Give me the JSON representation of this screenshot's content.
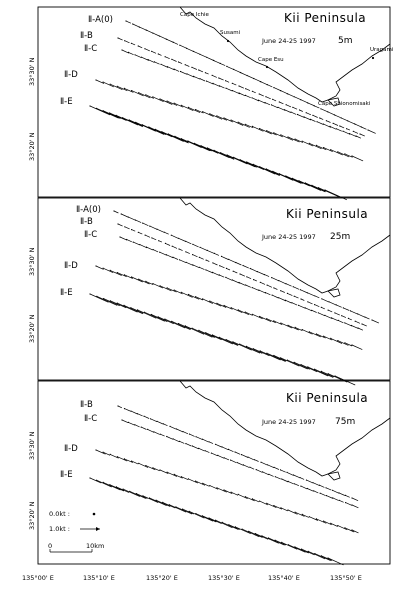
{
  "panels": [
    {
      "title": "Kii Peninsula",
      "date": "June 24-25 1997",
      "depth": "5m",
      "lat_labels": [
        "33°30' N",
        "33°20' N"
      ],
      "places": [
        "Cape Ichie",
        "Susami",
        "Uragami",
        "Cape Esu",
        "Cape Shionomisaki"
      ],
      "lines": [
        {
          "label": "Ⅱ-A(0)",
          "mag": 0.5
        },
        {
          "label": "Ⅱ-B",
          "mag": 0.3
        },
        {
          "label": "Ⅱ-C",
          "mag": 0.45
        },
        {
          "label": "Ⅱ-D",
          "mag": 0.75
        },
        {
          "label": "Ⅱ-E",
          "mag": 1.35
        }
      ]
    },
    {
      "title": "Kii Peninsula",
      "date": "June 24-25 1997",
      "depth": "25m",
      "lat_labels": [
        "33°30' N",
        "33°20' N"
      ],
      "lines": [
        {
          "label": "Ⅱ-A(0)",
          "mag": 0.45
        },
        {
          "label": "Ⅱ-B",
          "mag": 0.3
        },
        {
          "label": "Ⅱ-C",
          "mag": 0.45
        },
        {
          "label": "Ⅱ-D",
          "mag": 0.7
        },
        {
          "label": "Ⅱ-E",
          "mag": 1.25
        }
      ]
    },
    {
      "title": "Kii Peninsula",
      "date": "June 24-25 1997",
      "depth": "75m",
      "lat_labels": [
        "33°30' N",
        "33°20' N"
      ],
      "lines": [
        {
          "label": "Ⅱ-B",
          "mag": 0.4
        },
        {
          "label": "Ⅱ-C",
          "mag": 0.4
        },
        {
          "label": "Ⅱ-D",
          "mag": 0.6
        },
        {
          "label": "Ⅱ-E",
          "mag": 1.05
        }
      ],
      "legend": {
        "zero_label": "0.0kt :",
        "one_label": "1.0kt :",
        "scale_start": "0",
        "scale_end": "10km"
      }
    }
  ],
  "x_axis_labels": [
    "135°00' E",
    "135°10' E",
    "135°20' E",
    "135°30' E",
    "135°40' E",
    "135°50' E"
  ]
}
